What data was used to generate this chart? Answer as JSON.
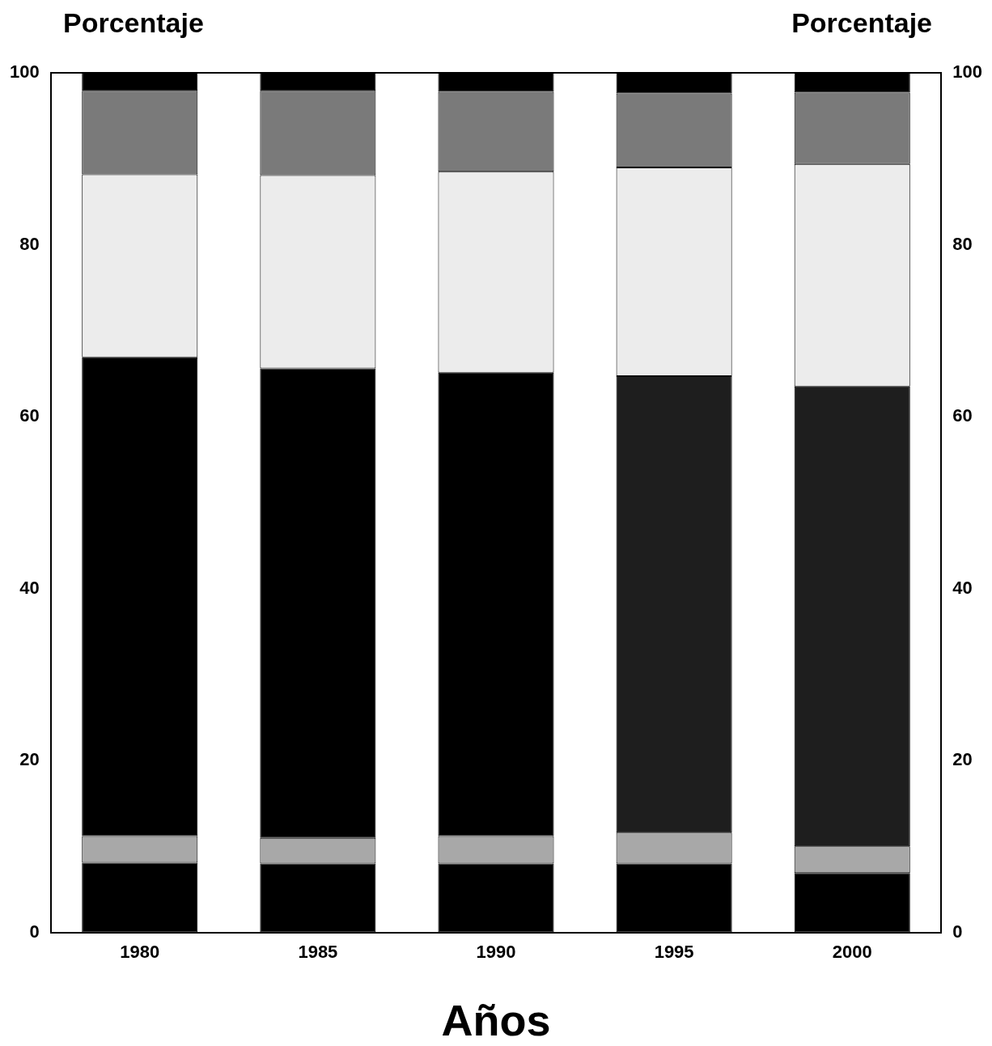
{
  "chart_data": {
    "type": "bar",
    "stacked": true,
    "ylabel": "Porcentaje",
    "y2label": "Porcentaje",
    "xlabel": "Años",
    "categories": [
      "1980",
      "1985",
      "1990",
      "1995",
      "2000"
    ],
    "series": [
      {
        "color": "#000000",
        "values": [
          8.1,
          8.0,
          8.0,
          8.0,
          6.9
        ]
      },
      {
        "color": "#a8a8a8",
        "values": [
          3.1,
          3.0,
          3.2,
          3.6,
          3.1
        ]
      },
      {
        "colors": [
          "#000000",
          "#000000",
          "#000000",
          "#1e1e1e",
          "#1e1e1e"
        ],
        "values": [
          55.7,
          54.6,
          53.9,
          53.1,
          53.5
        ]
      },
      {
        "color": "#ececec",
        "values": [
          21.3,
          22.5,
          23.4,
          24.3,
          25.9
        ]
      },
      {
        "color": "#7a7a7a",
        "values": [
          9.7,
          9.8,
          9.3,
          8.6,
          8.3
        ]
      },
      {
        "color": "#000000",
        "values": [
          2.1,
          2.1,
          2.2,
          2.4,
          2.3
        ]
      }
    ],
    "ylim": [
      0,
      100
    ],
    "yticks": [
      0,
      20,
      40,
      60,
      80,
      100
    ],
    "y2lim": [
      0,
      100
    ],
    "y2ticks": [
      0,
      20,
      40,
      60,
      80,
      100
    ],
    "grid": false,
    "legend": false
  }
}
